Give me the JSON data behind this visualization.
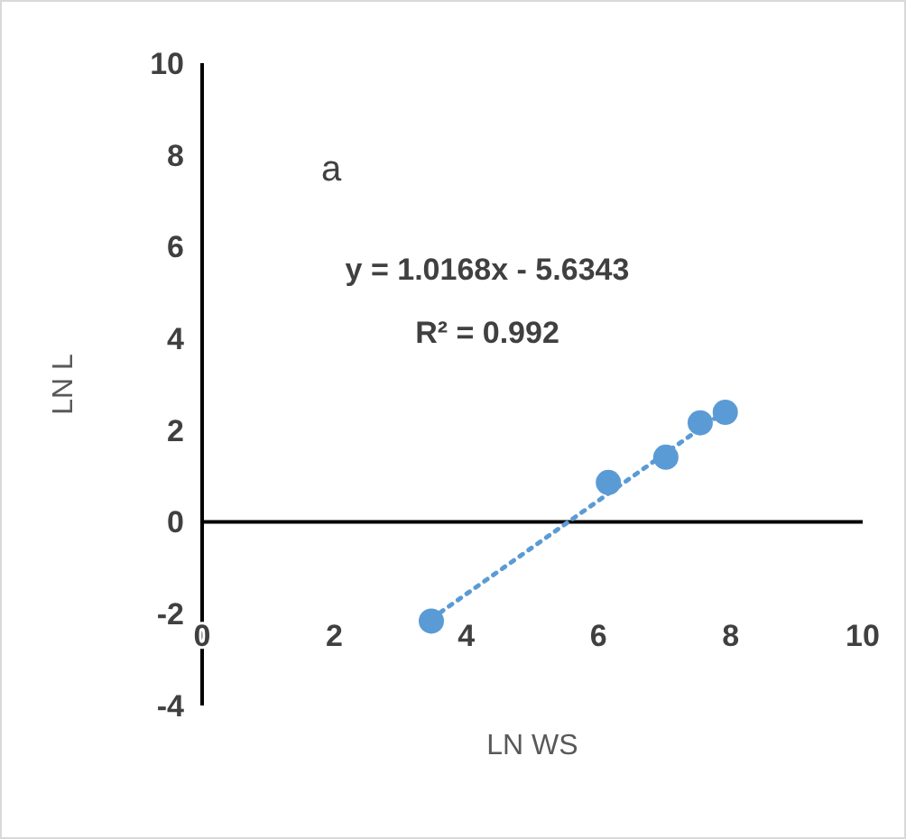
{
  "chart_data": {
    "type": "scatter",
    "xlabel": "LN WS",
    "ylabel": "LN L",
    "xlim": [
      0,
      10
    ],
    "ylim": [
      -4,
      10
    ],
    "xticks": [
      0,
      2,
      4,
      6,
      8,
      10
    ],
    "yticks": [
      -4,
      -2,
      0,
      2,
      4,
      6,
      8,
      10
    ],
    "marker": "circle",
    "annotations": [
      "a",
      "y = 1.0168x - 5.6343",
      "R² = 0.992"
    ],
    "series": [
      {
        "color": "#5b9bd5",
        "x": [
          3.47,
          6.15,
          7.02,
          7.54,
          7.92
        ],
        "values": [
          -2.16,
          0.86,
          1.41,
          2.16,
          2.39
        ]
      },
      {
        "type": "line",
        "color": "#5b9bd5",
        "line_style": "dotted",
        "marker": "none",
        "x": [
          3.47,
          7.92
        ],
        "values": [
          -2.11,
          2.42
        ]
      }
    ]
  }
}
